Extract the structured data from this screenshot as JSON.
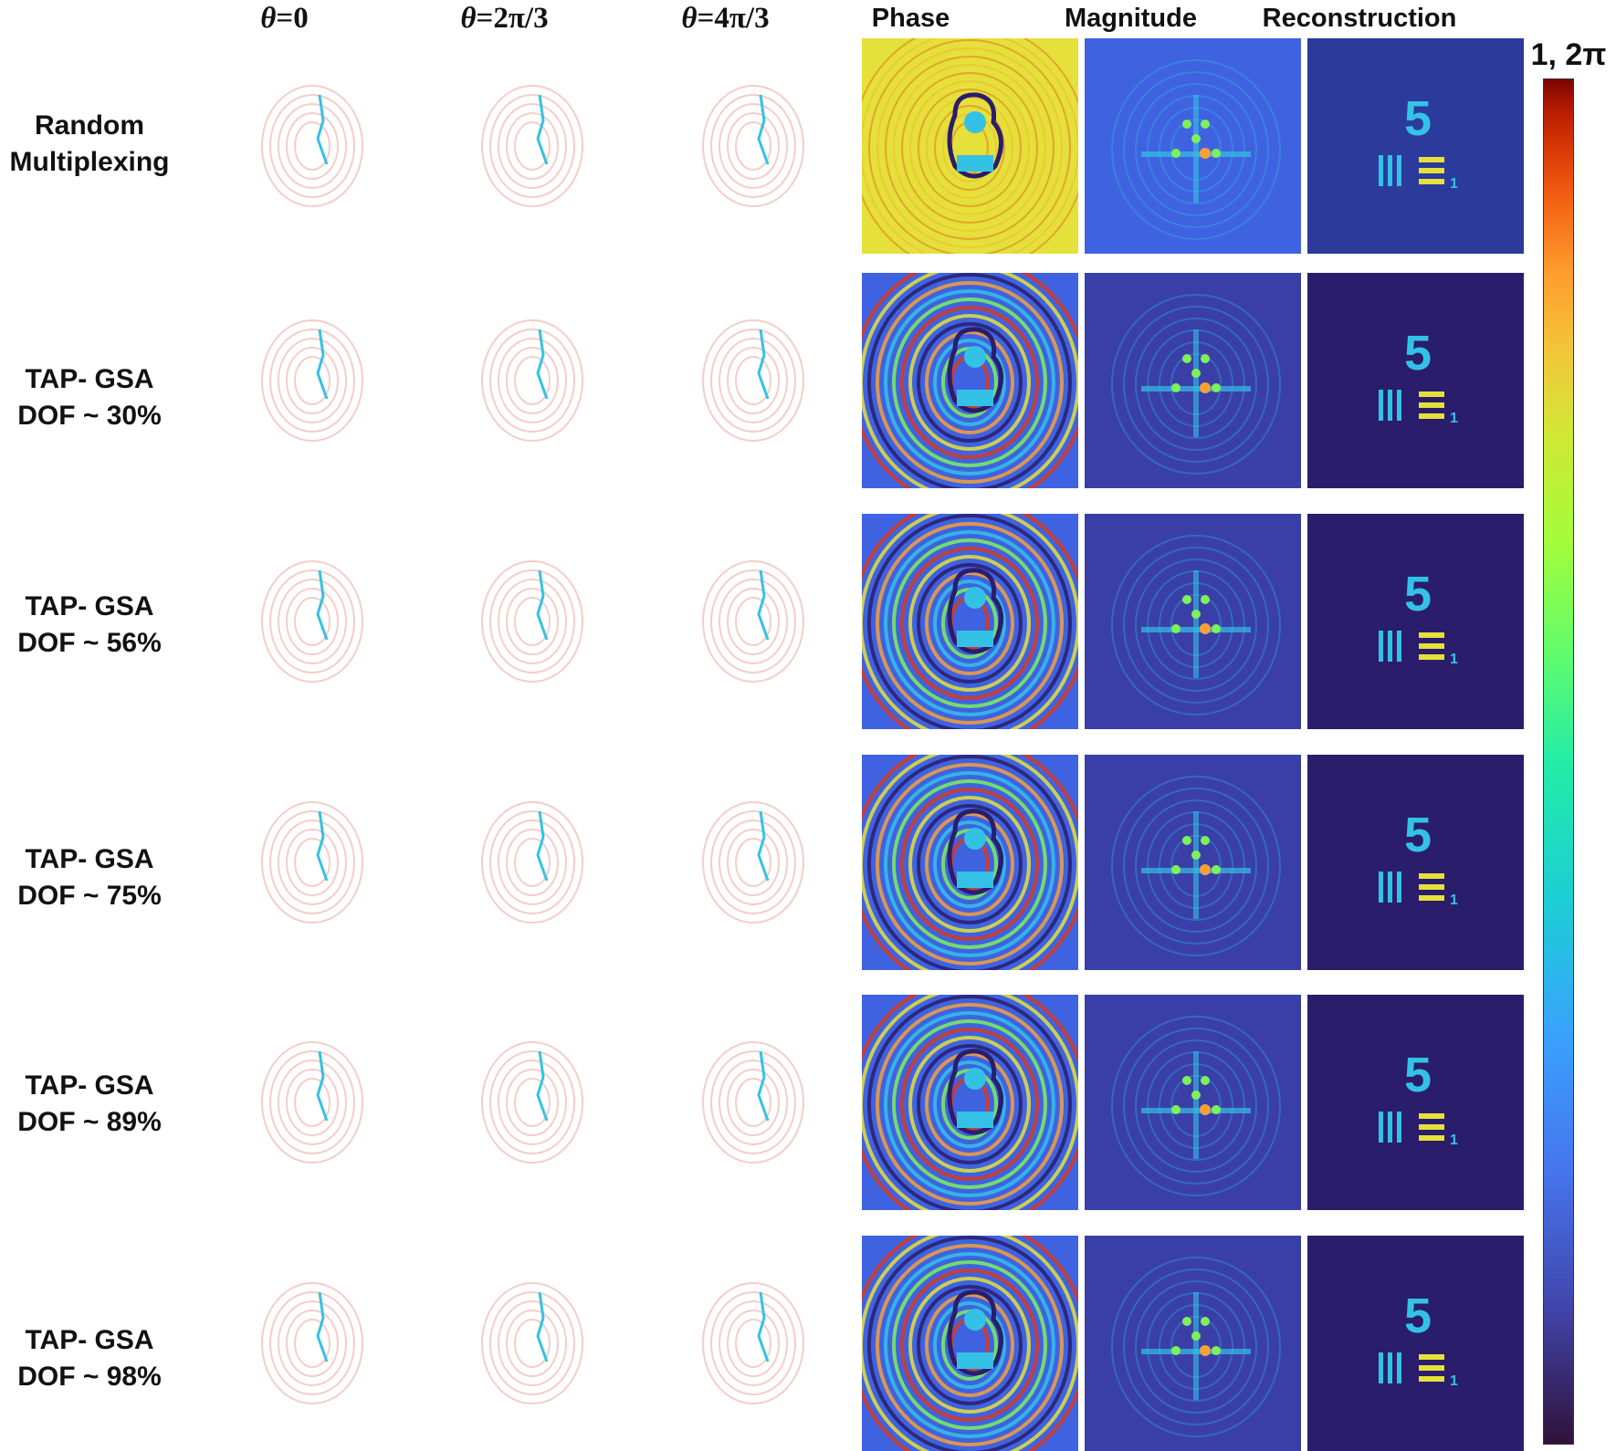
{
  "figure": {
    "column_headers": [
      {
        "theta_symbol": "θ",
        "text": "=0"
      },
      {
        "theta_symbol": "θ",
        "text": "=2π/3"
      },
      {
        "theta_symbol": "θ",
        "text": "=4π/3"
      },
      {
        "text": "Phase"
      },
      {
        "text": "Magnitude"
      },
      {
        "text": "Reconstruction"
      }
    ],
    "rows": [
      {
        "line1": "Random",
        "line2": "Multiplexing"
      },
      {
        "line1": "TAP- GSA",
        "line2": "DOF ~ 30%"
      },
      {
        "line1": "TAP- GSA",
        "line2": "DOF ~ 56%"
      },
      {
        "line1": "TAP- GSA",
        "line2": "DOF ~ 75%"
      },
      {
        "line1": "TAP- GSA",
        "line2": "DOF ~ 89%"
      },
      {
        "line1": "TAP- GSA",
        "line2": "DOF ~ 98%"
      }
    ],
    "colorbar": {
      "label": "1, 2π",
      "colormap": "turbo"
    },
    "reconstruction_digit": "5",
    "reconstruction_small_digit": "1",
    "colors": {
      "background": "#ffffff",
      "deep": "#2a1d6b",
      "blue": "#3f63e0",
      "cyan": "#33c2e6",
      "green": "#7ef05a",
      "yellow": "#e5e03a",
      "orange": "#f6a03a",
      "red": "#d9381e"
    }
  }
}
